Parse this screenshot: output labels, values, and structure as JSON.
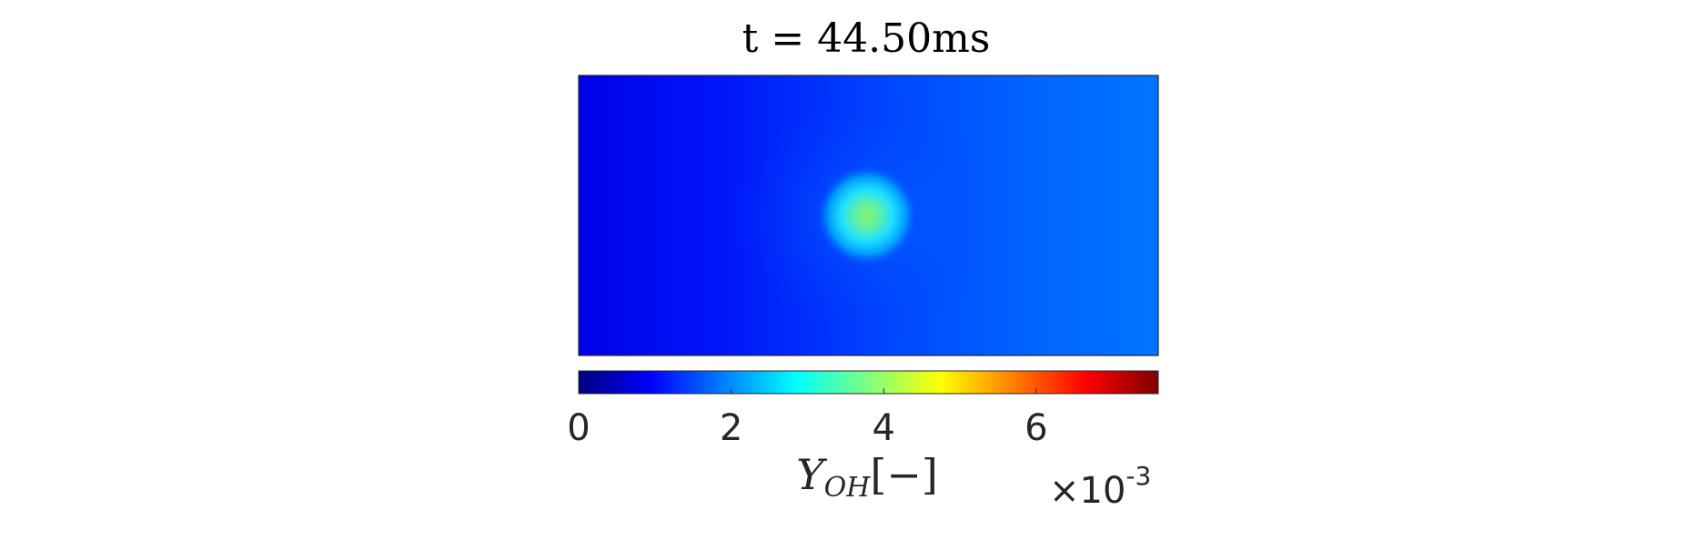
{
  "chart_data": {
    "type": "heatmap",
    "title": "t = 44.50ms",
    "field": {
      "background_color": "#0038ff",
      "max_value_approx": 0.0042,
      "peak_color": "#7ef071"
    },
    "colorbar": {
      "orientation": "horizontal",
      "colormap": "jet",
      "range": [
        0,
        0.0076
      ],
      "ticks": [
        0,
        2,
        4,
        6
      ],
      "tick_labels": [
        "0",
        "2",
        "4",
        "6"
      ],
      "label": "Y_OH [-]",
      "label_parts": {
        "symbol": "Y",
        "subscript": "OH",
        "units": "[−]"
      },
      "multiplier": {
        "prefix": "×10",
        "exponent": "-3"
      },
      "colors": [
        "#00007f",
        "#0000ff",
        "#007fff",
        "#00ffff",
        "#7fff7f",
        "#ffff00",
        "#ff7f00",
        "#ff0000",
        "#7f0000"
      ]
    }
  }
}
